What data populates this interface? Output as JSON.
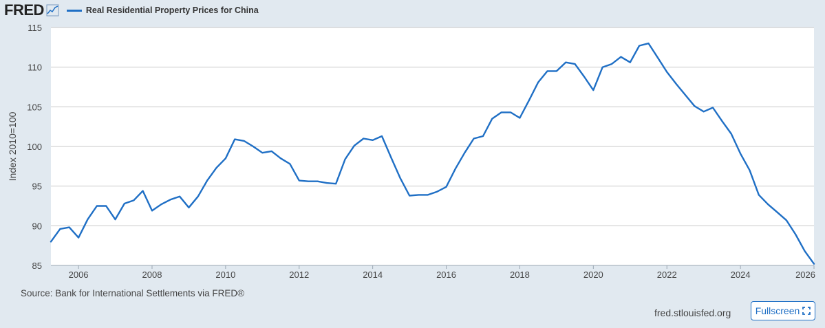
{
  "header": {
    "logo_text": "FRED",
    "logo_icon": "line-chart-icon"
  },
  "chart_data": {
    "type": "line",
    "title": "",
    "ylabel": "Index 2010=100",
    "xlabel": "",
    "xlim": [
      2005.25,
      2026.0
    ],
    "ylim": [
      85,
      115
    ],
    "x_ticks": [
      "2006",
      "2008",
      "2010",
      "2012",
      "2014",
      "2016",
      "2018",
      "2020",
      "2022",
      "2024",
      "2026"
    ],
    "y_ticks": [
      "85",
      "90",
      "95",
      "100",
      "105",
      "110",
      "115"
    ],
    "grid": "horizontal",
    "legend_position": "top-left",
    "series": [
      {
        "name": "Real Residential Property Prices for China",
        "color": "#1f6fc5",
        "points": [
          [
            2005.25,
            88.0
          ],
          [
            2005.5,
            89.6
          ],
          [
            2005.75,
            89.8
          ],
          [
            2006.0,
            88.5
          ],
          [
            2006.25,
            90.8
          ],
          [
            2006.5,
            92.5
          ],
          [
            2006.75,
            92.5
          ],
          [
            2007.0,
            90.8
          ],
          [
            2007.25,
            92.8
          ],
          [
            2007.5,
            93.2
          ],
          [
            2007.75,
            94.4
          ],
          [
            2008.0,
            91.9
          ],
          [
            2008.25,
            92.7
          ],
          [
            2008.5,
            93.3
          ],
          [
            2008.75,
            93.7
          ],
          [
            2009.0,
            92.3
          ],
          [
            2009.25,
            93.7
          ],
          [
            2009.5,
            95.7
          ],
          [
            2009.75,
            97.3
          ],
          [
            2010.0,
            98.5
          ],
          [
            2010.25,
            100.9
          ],
          [
            2010.5,
            100.7
          ],
          [
            2010.75,
            100.0
          ],
          [
            2011.0,
            99.2
          ],
          [
            2011.25,
            99.4
          ],
          [
            2011.5,
            98.5
          ],
          [
            2011.75,
            97.8
          ],
          [
            2012.0,
            95.7
          ],
          [
            2012.25,
            95.6
          ],
          [
            2012.5,
            95.6
          ],
          [
            2012.75,
            95.4
          ],
          [
            2013.0,
            95.3
          ],
          [
            2013.25,
            98.4
          ],
          [
            2013.5,
            100.1
          ],
          [
            2013.75,
            101.0
          ],
          [
            2014.0,
            100.8
          ],
          [
            2014.25,
            101.3
          ],
          [
            2014.5,
            98.6
          ],
          [
            2014.75,
            96.0
          ],
          [
            2015.0,
            93.8
          ],
          [
            2015.25,
            93.9
          ],
          [
            2015.5,
            93.9
          ],
          [
            2015.75,
            94.3
          ],
          [
            2016.0,
            94.9
          ],
          [
            2016.25,
            97.2
          ],
          [
            2016.5,
            99.2
          ],
          [
            2016.75,
            101.0
          ],
          [
            2017.0,
            101.3
          ],
          [
            2017.25,
            103.5
          ],
          [
            2017.5,
            104.3
          ],
          [
            2017.75,
            104.3
          ],
          [
            2018.0,
            103.6
          ],
          [
            2018.25,
            105.8
          ],
          [
            2018.5,
            108.1
          ],
          [
            2018.75,
            109.5
          ],
          [
            2019.0,
            109.5
          ],
          [
            2019.25,
            110.6
          ],
          [
            2019.5,
            110.4
          ],
          [
            2019.75,
            108.8
          ],
          [
            2020.0,
            107.1
          ],
          [
            2020.25,
            110.0
          ],
          [
            2020.5,
            110.4
          ],
          [
            2020.75,
            111.3
          ],
          [
            2021.0,
            110.6
          ],
          [
            2021.25,
            112.7
          ],
          [
            2021.5,
            113.0
          ],
          [
            2021.75,
            111.2
          ],
          [
            2022.0,
            109.4
          ],
          [
            2022.25,
            107.9
          ],
          [
            2022.5,
            106.5
          ],
          [
            2022.75,
            105.1
          ],
          [
            2023.0,
            104.4
          ],
          [
            2023.25,
            104.9
          ],
          [
            2023.5,
            103.2
          ],
          [
            2023.75,
            101.6
          ],
          [
            2024.0,
            99.1
          ],
          [
            2024.25,
            97.0
          ],
          [
            2024.5,
            93.9
          ],
          [
            2024.75,
            92.7
          ],
          [
            2025.0,
            91.7
          ],
          [
            2025.25,
            90.7
          ],
          [
            2025.5,
            88.9
          ],
          [
            2025.75,
            86.8
          ],
          [
            2026.0,
            85.2
          ]
        ]
      }
    ]
  },
  "footer": {
    "source": "Source: Bank for International Settlements via FRED®",
    "site": "fred.stlouisfed.org",
    "fullscreen_label": "Fullscreen",
    "fullscreen_icon": "expand-icon"
  }
}
